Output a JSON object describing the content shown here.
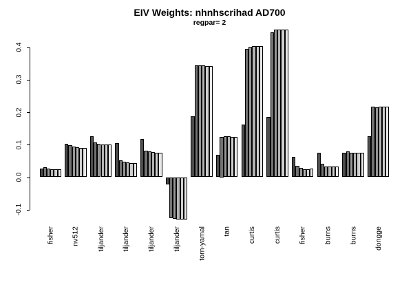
{
  "chart_data": {
    "type": "bar",
    "title": "EIV Weights: nhnhscrihad AD700",
    "subtitle": "regpar= 2",
    "ylabel": "",
    "xlabel": "",
    "axis_range": [
      -0.1,
      0.4
    ],
    "grid": false,
    "legend": "none",
    "yticks": [
      {
        "value": -0.1,
        "label": "-0.1"
      },
      {
        "value": 0.0,
        "label": "0.0"
      },
      {
        "value": 0.1,
        "label": "0.1"
      },
      {
        "value": 0.2,
        "label": "0.2"
      },
      {
        "value": 0.3,
        "label": "0.3"
      },
      {
        "value": 0.4,
        "label": "0.4"
      }
    ],
    "bar_colors": [
      "#4D4D4D",
      "#737373",
      "#969696",
      "#B4B4B4",
      "#CFCFCF",
      "#E8E8E8"
    ],
    "bar_border_color": "#000000",
    "categories": [
      "fisher",
      "nv512",
      "tiljander",
      "tiljander",
      "tiljander",
      "tiljander",
      "torn-yamal",
      "tan",
      "curtis",
      "curtis",
      "fisher",
      "burns",
      "burns",
      "dongge"
    ],
    "groups": [
      {
        "label": "fisher",
        "values": [
          0.026,
          0.03,
          0.026,
          0.025,
          0.025,
          0.025
        ]
      },
      {
        "label": "nv512",
        "values": [
          0.102,
          0.099,
          0.095,
          0.092,
          0.091,
          0.091
        ]
      },
      {
        "label": "tiljander",
        "values": [
          0.126,
          0.107,
          0.103,
          0.101,
          0.101,
          0.101
        ]
      },
      {
        "label": "tiljander",
        "values": [
          0.104,
          0.051,
          0.048,
          0.046,
          0.044,
          0.044
        ]
      },
      {
        "label": "tiljander",
        "values": [
          0.117,
          0.082,
          0.079,
          0.077,
          0.076,
          0.075
        ]
      },
      {
        "label": "tiljander",
        "values": [
          -0.023,
          -0.125,
          -0.129,
          -0.131,
          -0.131,
          -0.131
        ]
      },
      {
        "label": "torn-yamal",
        "values": [
          0.187,
          0.344,
          0.344,
          0.344,
          0.342,
          0.342
        ]
      },
      {
        "label": "tan",
        "values": [
          0.069,
          0.125,
          0.127,
          0.127,
          0.123,
          0.124
        ]
      },
      {
        "label": "curtis",
        "values": [
          0.162,
          0.395,
          0.401,
          0.403,
          0.404,
          0.403
        ]
      },
      {
        "label": "curtis",
        "values": [
          0.185,
          0.447,
          0.455,
          0.455,
          0.455,
          0.455
        ]
      },
      {
        "label": "fisher",
        "values": [
          0.063,
          0.034,
          0.028,
          0.025,
          0.025,
          0.026
        ]
      },
      {
        "label": "burns",
        "values": [
          0.075,
          0.042,
          0.033,
          0.033,
          0.033,
          0.033
        ]
      },
      {
        "label": "burns",
        "values": [
          0.076,
          0.08,
          0.075,
          0.076,
          0.076,
          0.076
        ]
      },
      {
        "label": "dongge",
        "values": [
          0.127,
          0.217,
          0.214,
          0.218,
          0.217,
          0.217
        ]
      }
    ]
  }
}
